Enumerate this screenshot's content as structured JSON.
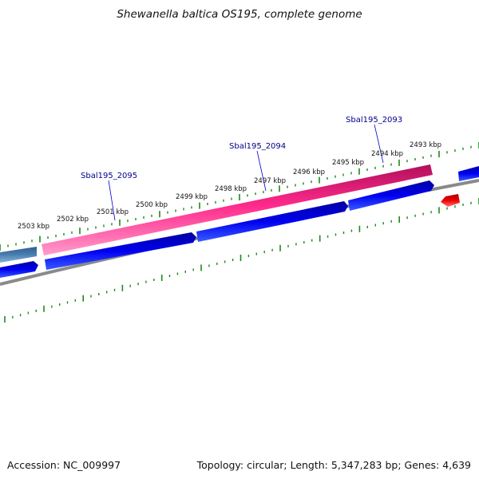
{
  "title": "Shewanella baltica OS195, complete genome",
  "footer": {
    "accession": "Accession: NC_009997",
    "summary": "Topology: circular; Length: 5,347,283 bp; Genes: 4,639"
  },
  "map": {
    "tick_labels": [
      "2503 kbp",
      "2502 kbp",
      "2501 kbp",
      "2500 kbp",
      "2499 kbp",
      "2498 kbp",
      "2497 kbp",
      "2496 kbp",
      "2495 kbp",
      "2494 kbp",
      "2493 kbp"
    ],
    "genes": [
      "Sbal195_2095",
      "Sbal195_2094",
      "Sbal195_2093"
    ],
    "colors": {
      "pink_feature": "#e8157a",
      "blue_feature": "#0000e6",
      "steel_feature": "#4a7eb0",
      "red_feature": "#e00000",
      "backbone": "#808080",
      "ticks": "#1a8a1a",
      "gene_label": "#00008b"
    }
  }
}
